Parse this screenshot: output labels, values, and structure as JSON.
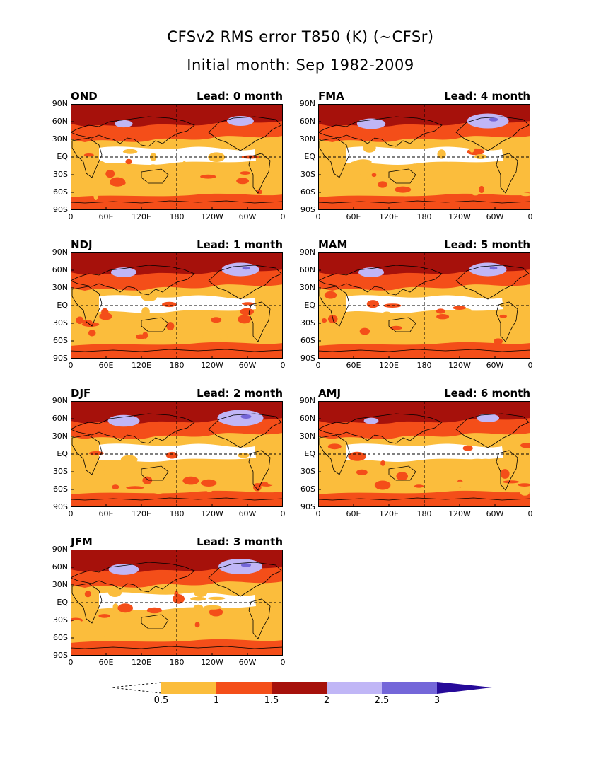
{
  "title": "CFSv2 RMS error T850 (K) (~CFSr)",
  "subtitle": "Initial month: Sep 1982-2009",
  "lat_labels": [
    "90N",
    "60N",
    "30N",
    "EQ",
    "30S",
    "60S",
    "90S"
  ],
  "lon_labels": [
    "0",
    "60E",
    "120E",
    "180",
    "120W",
    "60W",
    "0"
  ],
  "panels": [
    {
      "season": "OND",
      "lead": "Lead: 0 month",
      "arctic": 0.3,
      "ocean_level": 1
    },
    {
      "season": "NDJ",
      "lead": "Lead: 1 month",
      "arctic": 0.55,
      "ocean_level": 1
    },
    {
      "season": "DJF",
      "lead": "Lead: 2 month",
      "arctic": 0.75,
      "ocean_level": 1
    },
    {
      "season": "JFM",
      "lead": "Lead: 3 month",
      "arctic": 0.7,
      "ocean_level": 1
    },
    {
      "season": "FMA",
      "lead": "Lead: 4 month",
      "arctic": 0.65,
      "ocean_level": 1
    },
    {
      "season": "MAM",
      "lead": "Lead: 5 month",
      "arctic": 0.55,
      "ocean_level": 1
    },
    {
      "season": "AMJ",
      "lead": "Lead: 6 month",
      "arctic": 0.2,
      "ocean_level": 1
    }
  ],
  "colorbar": {
    "ticks": [
      "0.5",
      "1",
      "1.5",
      "2",
      "2.5",
      "3"
    ],
    "colors": [
      "#fbbd3c",
      "#f44e19",
      "#a6110b",
      "#c0b6f6",
      "#7467d9",
      "#260a99"
    ],
    "below_color": "#ffffff"
  },
  "colors": {
    "border": "#000000",
    "equator_dash": "#000000"
  }
}
